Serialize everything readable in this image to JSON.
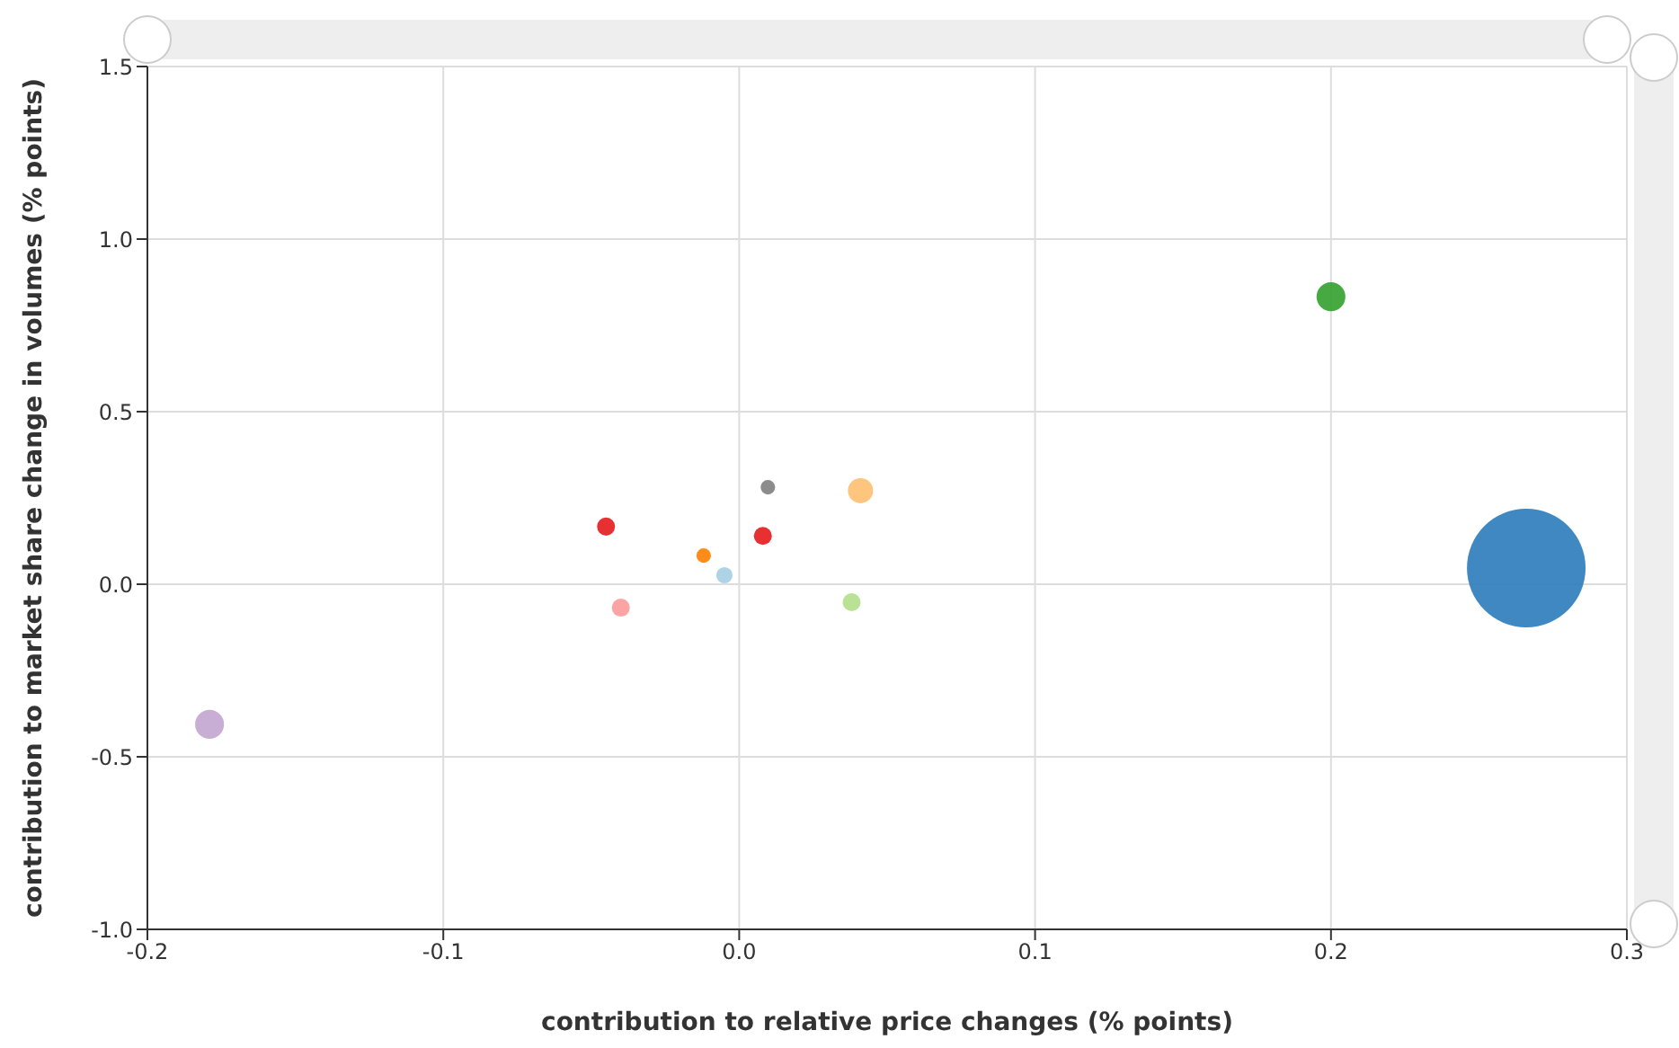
{
  "chart_data": {
    "type": "bubble",
    "xlabel": "contribution to relative price changes (% points)",
    "ylabel": "contribution to market share change in volumes (% points)",
    "x": [
      0.266,
      0.2,
      -0.179,
      0.041,
      0.0097,
      -0.045,
      0.008,
      -0.012,
      -0.005,
      -0.04,
      0.038
    ],
    "values": [
      0.047,
      0.833,
      -0.406,
      0.271,
      0.281,
      0.167,
      0.14,
      0.083,
      0.026,
      -0.068,
      -0.052
    ],
    "sizes": [
      1,
      0.059,
      0.059,
      0.045,
      0.015,
      0.023,
      0.023,
      0.015,
      0.019,
      0.023,
      0.023
    ],
    "colors": [
      "#2b7bba",
      "#33a02c",
      "#c2a5cf",
      "#fdbf6f",
      "#808080",
      "#e31a1c",
      "#e31a1c",
      "#ff7f00",
      "#a6cee3",
      "#fb9a99",
      "#b2df8a"
    ],
    "xlim": [
      -0.2,
      0.3
    ],
    "xticks": [
      {
        "value": -0.2,
        "label": "-0.2"
      },
      {
        "value": -0.1,
        "label": "-0.1"
      },
      {
        "value": 0,
        "label": "0.0"
      },
      0.1,
      0.2,
      0.3
    ],
    "ylim": [
      -1,
      1.5
    ],
    "yticks": [
      {
        "value": -1,
        "label": "-1.0"
      },
      -0.5,
      {
        "value": 0,
        "label": "0.0"
      },
      0.5,
      {
        "value": 1,
        "label": "1.0"
      },
      1.5
    ],
    "grid": true
  }
}
